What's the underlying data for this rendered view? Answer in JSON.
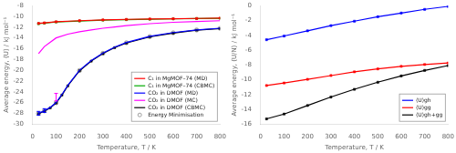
{
  "chart_data": [
    {
      "type": "line",
      "xlabel": "Temperature, T / K",
      "ylabel": "Average energy, ⟨U⟩ / kJ mol⁻¹",
      "xlim": [
        0,
        800
      ],
      "ylim": [
        -30,
        -8
      ],
      "xticks": [
        0,
        100,
        200,
        300,
        400,
        500,
        600,
        700,
        800
      ],
      "yticks": [
        -30,
        -28,
        -26,
        -24,
        -22,
        -20,
        -18,
        -16,
        -14,
        -12,
        -10,
        -8
      ],
      "grid": false,
      "legend": "lower right",
      "series": [
        {
          "name": "C₁ in MgMOF–74 (MD)",
          "color": "#ff0000",
          "marker": "square",
          "x": [
            25,
            50,
            100,
            200,
            300,
            400,
            500,
            600,
            700,
            800
          ],
          "values": [
            -11.3,
            -11.2,
            -11.0,
            -10.8,
            -10.65,
            -10.55,
            -10.48,
            -10.43,
            -10.38,
            -10.32
          ]
        },
        {
          "name": "C₁ in MgMOF–74 (CBMC)",
          "color": "#00aa00",
          "marker": "square",
          "x": [
            25,
            50,
            100,
            200,
            300,
            400,
            500,
            600,
            700,
            800
          ],
          "values": [
            -11.35,
            -11.25,
            -11.05,
            -10.85,
            -10.7,
            -10.6,
            -10.52,
            -10.46,
            -10.41,
            -10.35
          ]
        },
        {
          "name": "CO₂ in DMOF (MD)",
          "color": "#0000ff",
          "x": [
            25,
            50,
            75,
            100,
            125,
            150,
            200,
            250,
            300,
            350,
            400,
            500,
            600,
            700,
            800
          ],
          "values": [
            -28.0,
            -27.5,
            -26.9,
            -26.0,
            -24.5,
            -22.8,
            -20.0,
            -18.2,
            -16.8,
            -15.7,
            -14.85,
            -13.7,
            -13.0,
            -12.5,
            -12.2
          ]
        },
        {
          "name": "CO₂ in DMOF (MC)",
          "color": "#ff00ff",
          "x": [
            25,
            50,
            100,
            150,
            200,
            250,
            300,
            350,
            400,
            500,
            600,
            700,
            800
          ],
          "values": [
            -16.9,
            -15.6,
            -14.0,
            -13.3,
            -12.85,
            -12.5,
            -12.2,
            -11.95,
            -11.7,
            -11.35,
            -11.1,
            -10.95,
            -10.8
          ]
        },
        {
          "name": "CO₂ in DMOF (CBMC)",
          "color": "#000000",
          "marker": "square",
          "x": [
            25,
            50,
            75,
            100,
            125,
            150,
            200,
            250,
            300,
            350,
            400,
            500,
            600,
            700,
            800
          ],
          "values": [
            -28.1,
            -27.6,
            -27.0,
            -26.1,
            -24.6,
            -22.9,
            -20.1,
            -18.3,
            -16.9,
            -15.8,
            -14.95,
            -13.8,
            -13.1,
            -12.55,
            -12.25
          ]
        },
        {
          "name": "Energy Minimisation",
          "type": "scatter",
          "color": "#888888",
          "marker": "circle",
          "x": [
            25,
            50,
            100,
            200,
            300,
            400,
            500,
            600,
            700,
            800
          ],
          "values": [
            -28.05,
            -27.55,
            -26.05,
            -20.05,
            -16.85,
            -14.9,
            -13.75,
            -13.05,
            -12.52,
            -12.22
          ]
        }
      ],
      "error_bars": [
        {
          "x": 25,
          "y": -28.0,
          "err": 0.35,
          "color": "#0000ff"
        },
        {
          "x": 50,
          "y": -27.5,
          "err": 0.35,
          "color": "#0000ff"
        },
        {
          "x": 100,
          "y": -25.0,
          "err": 0.7,
          "color": "#ff00ff"
        }
      ]
    },
    {
      "type": "line",
      "xlabel": "Temperature, T / K",
      "ylabel": "Average energy, ⟨U/N⟩ / kJ mol⁻¹",
      "xlim": [
        0,
        800
      ],
      "ylim": [
        -16,
        0
      ],
      "xticks": [
        0,
        100,
        200,
        300,
        400,
        500,
        600,
        700,
        800
      ],
      "yticks": [
        -16,
        -14,
        -12,
        -10,
        -8,
        -6,
        -4,
        -2,
        0
      ],
      "grid": false,
      "legend": "lower right",
      "series": [
        {
          "name": "⟨U⟩gh",
          "color": "#0000ff",
          "marker": "square",
          "x": [
            25,
            100,
            200,
            300,
            400,
            500,
            600,
            700,
            800
          ],
          "values": [
            -4.6,
            -4.1,
            -3.4,
            -2.7,
            -2.1,
            -1.5,
            -1.0,
            -0.5,
            -0.1
          ]
        },
        {
          "name": "⟨U⟩gg",
          "color": "#ff0000",
          "marker": "square",
          "x": [
            25,
            100,
            200,
            300,
            400,
            500,
            600,
            700,
            800
          ],
          "values": [
            -10.8,
            -10.45,
            -9.95,
            -9.45,
            -8.95,
            -8.55,
            -8.2,
            -7.95,
            -7.75
          ]
        },
        {
          "name": "⟨U⟩gh+gg",
          "color": "#000000",
          "marker": "square",
          "x": [
            25,
            100,
            200,
            300,
            400,
            500,
            600,
            700,
            800
          ],
          "values": [
            -15.3,
            -14.65,
            -13.5,
            -12.35,
            -11.3,
            -10.35,
            -9.5,
            -8.75,
            -8.1
          ]
        }
      ]
    }
  ]
}
